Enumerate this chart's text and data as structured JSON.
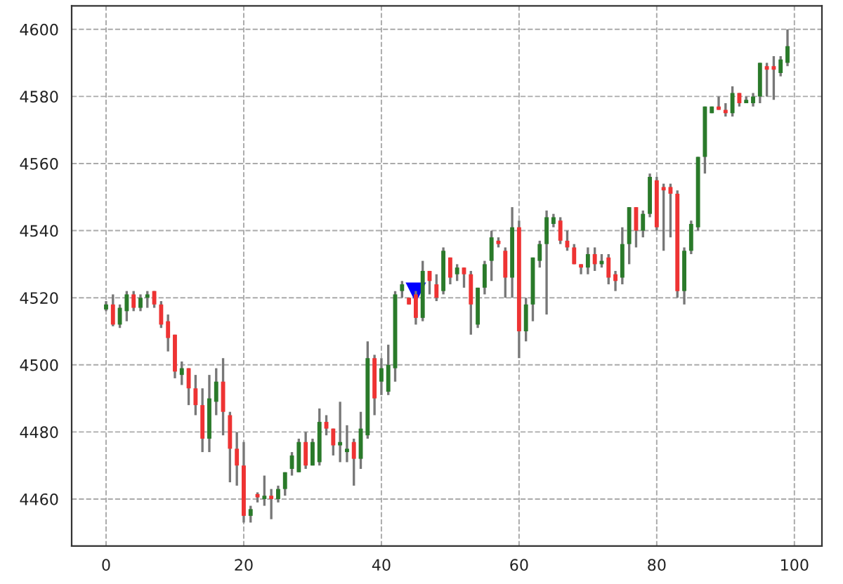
{
  "chart_data": {
    "type": "candlestick",
    "xlim": [
      -5,
      104
    ],
    "ylim": [
      4446,
      4607
    ],
    "xticks": [
      0,
      20,
      40,
      60,
      80,
      100
    ],
    "yticks": [
      4460,
      4480,
      4500,
      4520,
      4540,
      4560,
      4580,
      4600
    ],
    "grid": true,
    "x": [
      0,
      1,
      2,
      3,
      4,
      5,
      6,
      7,
      8,
      9,
      10,
      11,
      12,
      13,
      14,
      15,
      16,
      17,
      18,
      19,
      20,
      21,
      22,
      23,
      24,
      25,
      26,
      27,
      28,
      29,
      30,
      31,
      32,
      33,
      34,
      35,
      36,
      37,
      38,
      39,
      40,
      41,
      42,
      43,
      44,
      45,
      46,
      47,
      48,
      49,
      50,
      51,
      52,
      53,
      54,
      55,
      56,
      57,
      58,
      59,
      60,
      61,
      62,
      63,
      64,
      65,
      66,
      67,
      68,
      69,
      70,
      71,
      72,
      73,
      74,
      75,
      76,
      77,
      78,
      79,
      80,
      81,
      82,
      83,
      84,
      85,
      86,
      87,
      88,
      89,
      90,
      91,
      92,
      93,
      94,
      95,
      96,
      97,
      98,
      99
    ],
    "ohlc": [
      [
        4516.5,
        4519,
        4516,
        4518
      ],
      [
        4518,
        4521,
        4511.5,
        4512
      ],
      [
        4512,
        4518,
        4511,
        4517
      ],
      [
        4516,
        4522,
        4513,
        4521
      ],
      [
        4521,
        4522,
        4516,
        4517
      ],
      [
        4517,
        4521,
        4516,
        4520
      ],
      [
        4520,
        4522,
        4517,
        4521
      ],
      [
        4522,
        4522,
        4517,
        4518
      ],
      [
        4518,
        4519,
        4511,
        4512
      ],
      [
        4513,
        4515,
        4504,
        4508
      ],
      [
        4509,
        4509,
        4496,
        4498
      ],
      [
        4497,
        4501,
        4494,
        4499
      ],
      [
        4499,
        4499,
        4488,
        4493
      ],
      [
        4493,
        4497,
        4485,
        4488
      ],
      [
        4488,
        4493,
        4474,
        4478
      ],
      [
        4478,
        4497,
        4474,
        4490
      ],
      [
        4489,
        4499,
        4485,
        4495
      ],
      [
        4495,
        4502,
        4479,
        4486
      ],
      [
        4485,
        4486,
        4465,
        4475
      ],
      [
        4475,
        4480,
        4464,
        4470
      ],
      [
        4470,
        4477,
        4453,
        4455
      ],
      [
        4455,
        4458,
        4453,
        4457
      ],
      [
        4461.5,
        4462,
        4459,
        4460.5
      ],
      [
        4460,
        4467,
        4458,
        4461
      ],
      [
        4461,
        4463,
        4454,
        4460
      ],
      [
        4460,
        4464,
        4459,
        4463
      ],
      [
        4463,
        4468,
        4461,
        4468
      ],
      [
        4469,
        4474,
        4467,
        4473
      ],
      [
        4468,
        4478,
        4468,
        4477
      ],
      [
        4477,
        4480,
        4469,
        4470
      ],
      [
        4470,
        4478,
        4470,
        4477
      ],
      [
        4471,
        4487,
        4470,
        4483
      ],
      [
        4483,
        4485,
        4479,
        4481
      ],
      [
        4481,
        4481,
        4473,
        4476
      ],
      [
        4476,
        4489,
        4471,
        4477
      ],
      [
        4474,
        4482,
        4471,
        4475
      ],
      [
        4477,
        4478,
        4464,
        4472
      ],
      [
        4472,
        4486,
        4469,
        4481
      ],
      [
        4479,
        4507,
        4478,
        4502
      ],
      [
        4502,
        4503,
        4485,
        4490
      ],
      [
        4495,
        4502,
        4491,
        4499
      ],
      [
        4492,
        4506,
        4491,
        4500
      ],
      [
        4499,
        4522,
        4495,
        4521
      ],
      [
        4522,
        4525,
        4520,
        4524
      ],
      [
        4520,
        4520,
        4518,
        4518
      ],
      [
        4521,
        4522,
        4512,
        4514
      ],
      [
        4514,
        4531,
        4513,
        4528
      ],
      [
        4528,
        4528,
        4521,
        4525
      ],
      [
        4524,
        4527,
        4519,
        4520
      ],
      [
        4522,
        4535,
        4521,
        4534
      ],
      [
        4532,
        4532,
        4524,
        4526
      ],
      [
        4527,
        4530,
        4525,
        4529
      ],
      [
        4529,
        4529,
        4523,
        4527
      ],
      [
        4527,
        4528,
        4509,
        4518
      ],
      [
        4512,
        4523,
        4511,
        4523
      ],
      [
        4523,
        4531,
        4521,
        4530
      ],
      [
        4531,
        4540,
        4525,
        4538
      ],
      [
        4537,
        4538,
        4535,
        4536
      ],
      [
        4534,
        4535,
        4520,
        4526
      ],
      [
        4526,
        4547,
        4520,
        4541
      ],
      [
        4541,
        4543,
        4502,
        4510
      ],
      [
        4510,
        4520,
        4507,
        4518
      ],
      [
        4518,
        4532,
        4513,
        4532
      ],
      [
        4531,
        4537,
        4529,
        4536
      ],
      [
        4536,
        4546,
        4515,
        4544
      ],
      [
        4542,
        4545,
        4541,
        4544
      ],
      [
        4543,
        4544,
        4536,
        4537
      ],
      [
        4537,
        4540,
        4534,
        4535
      ],
      [
        4535,
        4536,
        4530,
        4530
      ],
      [
        4530,
        4530,
        4527,
        4529
      ],
      [
        4529,
        4535,
        4527,
        4533
      ],
      [
        4533,
        4535,
        4528,
        4530
      ],
      [
        4530,
        4533,
        4529,
        4531
      ],
      [
        4532,
        4533,
        4524,
        4526
      ],
      [
        4527,
        4528,
        4522,
        4525
      ],
      [
        4526,
        4541,
        4524,
        4536
      ],
      [
        4536,
        4547,
        4530,
        4547
      ],
      [
        4547,
        4547,
        4535,
        4540
      ],
      [
        4540,
        4546,
        4538,
        4545
      ],
      [
        4545,
        4557,
        4544,
        4556
      ],
      [
        4555,
        4556,
        4540,
        4541
      ],
      [
        4553,
        4554,
        4534,
        4552
      ],
      [
        4553,
        4554,
        4538,
        4551
      ],
      [
        4551,
        4552,
        4520,
        4522
      ],
      [
        4522,
        4535,
        4518,
        4534
      ],
      [
        4534,
        4543,
        4533,
        4542
      ],
      [
        4541,
        4562,
        4540,
        4562
      ],
      [
        4562,
        4577,
        4557,
        4577
      ],
      [
        4575,
        4577,
        4575,
        4577
      ],
      [
        4577,
        4580,
        4576,
        4576
      ],
      [
        4576,
        4578,
        4574,
        4575
      ],
      [
        4575,
        4583,
        4574,
        4581
      ],
      [
        4581,
        4581,
        4577,
        4578
      ],
      [
        4578,
        4580,
        4578,
        4579
      ],
      [
        4578,
        4581,
        4577,
        4580
      ],
      [
        4580,
        4590,
        4578,
        4590
      ],
      [
        4589,
        4590,
        4580,
        4588
      ],
      [
        4589,
        4592,
        4579,
        4588
      ],
      [
        4587,
        4592,
        4586,
        4591
      ],
      [
        4590,
        4600,
        4589,
        4595
      ]
    ],
    "colors": [
      "#2a7a2a",
      "#ee3333",
      "#2a7a2a",
      "#2a7a2a",
      "#ee3333",
      "#2a7a2a",
      "#2a7a2a",
      "#ee3333",
      "#ee3333",
      "#ee3333",
      "#ee3333",
      "#2a7a2a",
      "#ee3333",
      "#ee3333",
      "#ee3333",
      "#2a7a2a",
      "#2a7a2a",
      "#ee3333",
      "#ee3333",
      "#ee3333",
      "#ee3333",
      "#2a7a2a",
      "#ee3333",
      "#2a7a2a",
      "#ee3333",
      "#2a7a2a",
      "#2a7a2a",
      "#2a7a2a",
      "#2a7a2a",
      "#ee3333",
      "#2a7a2a",
      "#2a7a2a",
      "#ee3333",
      "#ee3333",
      "#2a7a2a",
      "#2a7a2a",
      "#ee3333",
      "#2a7a2a",
      "#2a7a2a",
      "#ee3333",
      "#2a7a2a",
      "#2a7a2a",
      "#2a7a2a",
      "#2a7a2a",
      "#ee3333",
      "#ee3333",
      "#2a7a2a",
      "#ee3333",
      "#ee3333",
      "#2a7a2a",
      "#ee3333",
      "#2a7a2a",
      "#ee3333",
      "#ee3333",
      "#2a7a2a",
      "#2a7a2a",
      "#2a7a2a",
      "#ee3333",
      "#ee3333",
      "#2a7a2a",
      "#ee3333",
      "#2a7a2a",
      "#2a7a2a",
      "#2a7a2a",
      "#2a7a2a",
      "#2a7a2a",
      "#ee3333",
      "#ee3333",
      "#ee3333",
      "#ee3333",
      "#2a7a2a",
      "#ee3333",
      "#2a7a2a",
      "#ee3333",
      "#ee3333",
      "#2a7a2a",
      "#2a7a2a",
      "#ee3333",
      "#2a7a2a",
      "#2a7a2a",
      "#ee3333",
      "#ee3333",
      "#ee3333",
      "#ee3333",
      "#2a7a2a",
      "#2a7a2a",
      "#2a7a2a",
      "#2a7a2a",
      "#2a7a2a",
      "#ee3333",
      "#ee3333",
      "#2a7a2a",
      "#ee3333",
      "#2a7a2a",
      "#2a7a2a",
      "#2a7a2a",
      "#ee3333",
      "#ee3333",
      "#2a7a2a",
      "#2a7a2a"
    ],
    "series": [
      {
        "type": "scatter",
        "color": "#0000ff",
        "marker": "triangle",
        "x": [
          45
        ],
        "values": [
          4521.5
        ]
      }
    ]
  }
}
